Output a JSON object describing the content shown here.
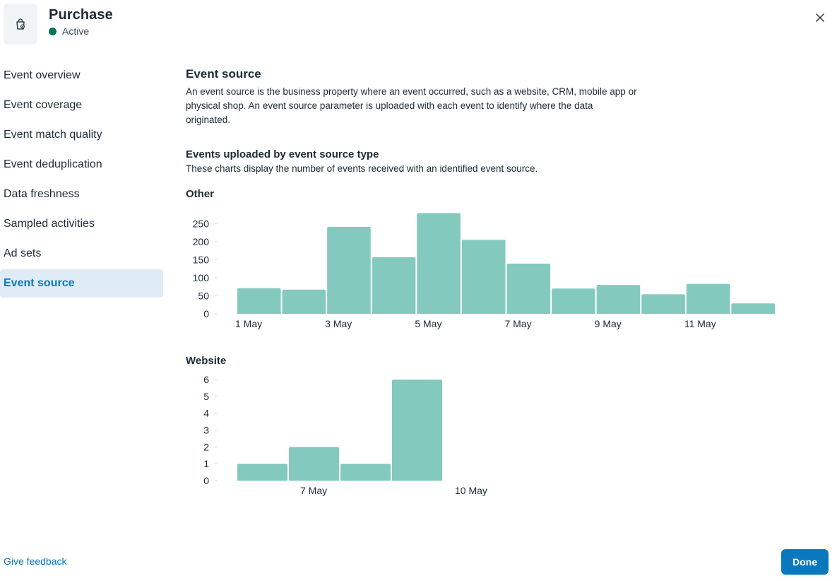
{
  "header": {
    "title": "Purchase",
    "status": "Active",
    "icon": "shopping-bag-icon",
    "status_color": "#077556"
  },
  "sidebar": {
    "items": [
      {
        "label": "Event overview",
        "active": false
      },
      {
        "label": "Event coverage",
        "active": false
      },
      {
        "label": "Event match quality",
        "active": false
      },
      {
        "label": "Event deduplication",
        "active": false
      },
      {
        "label": "Data freshness",
        "active": false
      },
      {
        "label": "Sampled activities",
        "active": false
      },
      {
        "label": "Ad sets",
        "active": false
      },
      {
        "label": "Event source",
        "active": true
      }
    ]
  },
  "main": {
    "title": "Event source",
    "description": "An event source is the business property where an event occurred, such as a website, CRM, mobile app or physical shop. An event source parameter is uploaded with each event to identify where the data originated.",
    "subtitle": "Events uploaded by event source type",
    "subdescription": "These charts display the number of events received with an identified event source."
  },
  "chart_data": [
    {
      "type": "bar",
      "title": "Other",
      "categories": [
        "1 May",
        "2 May",
        "3 May",
        "4 May",
        "5 May",
        "6 May",
        "7 May",
        "8 May",
        "9 May",
        "10 May",
        "11 May",
        "12 May"
      ],
      "x_tick_labels": [
        "1 May",
        "3 May",
        "5 May",
        "7 May",
        "9 May",
        "11 May"
      ],
      "values": [
        71,
        67,
        241,
        157,
        279,
        205,
        139,
        70,
        80,
        54,
        83,
        29
      ],
      "y_ticks": [
        0,
        50,
        100,
        150,
        200,
        250
      ],
      "ylim": [
        0,
        280
      ],
      "color": "#84c9be"
    },
    {
      "type": "bar",
      "title": "Website",
      "categories": [
        "6 May",
        "7 May",
        "8 May",
        "9 May"
      ],
      "x_tick_labels": [
        "7 May",
        "10 May"
      ],
      "values": [
        1,
        2,
        1,
        6
      ],
      "y_ticks": [
        0,
        1,
        2,
        3,
        4,
        5,
        6
      ],
      "ylim": [
        0,
        6
      ],
      "color": "#84c9be"
    }
  ],
  "footer": {
    "feedback_label": "Give feedback",
    "done_label": "Done"
  }
}
